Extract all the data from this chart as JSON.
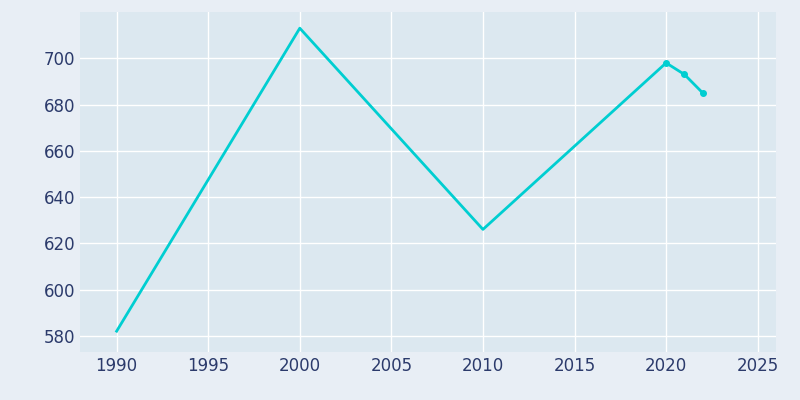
{
  "years": [
    1990,
    2000,
    2010,
    2020,
    2021,
    2022
  ],
  "population": [
    582,
    713,
    626,
    698,
    693,
    685
  ],
  "line_color": "#00CED1",
  "marker_color": "#00CED1",
  "axes_background_color": "#dce8f0",
  "figure_background_color": "#e8eef5",
  "grid_color": "#ffffff",
  "xlim": [
    1988,
    2026
  ],
  "ylim": [
    573,
    720
  ],
  "xticks": [
    1990,
    1995,
    2000,
    2005,
    2010,
    2015,
    2020,
    2025
  ],
  "yticks": [
    580,
    600,
    620,
    640,
    660,
    680,
    700
  ],
  "tick_color": "#2b3a6b",
  "tick_fontsize": 12,
  "line_width": 2.0,
  "marker_size": 4,
  "marker_years": [
    2020,
    2021,
    2022
  ],
  "marker_population": [
    698,
    693,
    685
  ]
}
